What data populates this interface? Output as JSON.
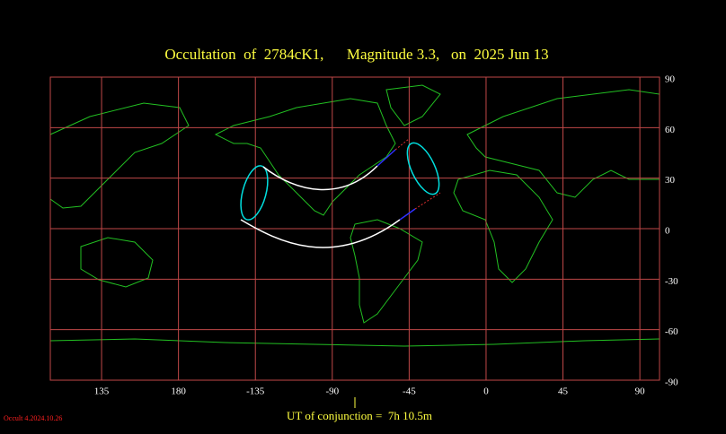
{
  "chart_data": {
    "type": "map",
    "title": "Occultation  of  2784cK1,      Magnitude 3.3,   on  2025 Jun 13",
    "footer": "UT of conjunction =  7h 10.5m",
    "version": "Occult 4.2024.10.26",
    "xlim": [
      105,
      101.5
    ],
    "xticks": [
      135,
      180,
      -135,
      -90,
      -45,
      0,
      45,
      90
    ],
    "ylim": [
      -90,
      90
    ],
    "yticks": [
      90,
      60,
      30,
      0,
      -30,
      -60,
      -90
    ],
    "grid": true
  }
}
